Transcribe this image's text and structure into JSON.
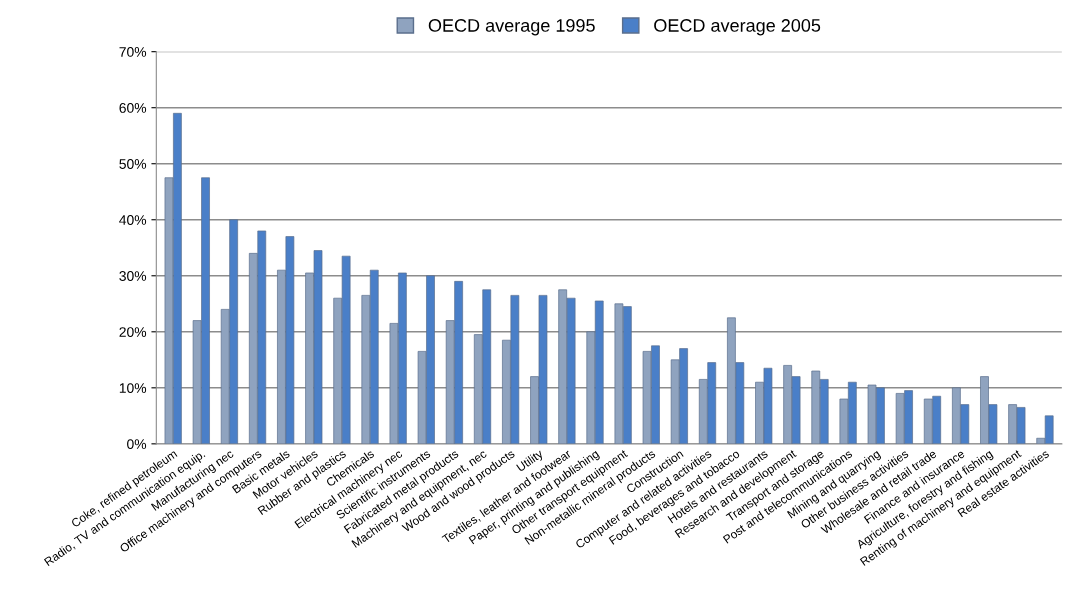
{
  "chart_data": {
    "type": "bar",
    "categories": [
      "Coke, refined petroleum",
      "Radio, TV and communication equip.",
      "Manufacturing nec",
      "Office machinery and computers",
      "Basic metals",
      "Motor vehicles",
      "Rubber and plastics",
      "Chemicals",
      "Electrical machinery nec",
      "Scientific instruments",
      "Fabricated metal products",
      "Machinery and equipment, nec",
      "Wood and wood products",
      "Utility",
      "Textiles, leather and footwear",
      "Paper, printing and publishing",
      "Other transport equipment",
      "Non-metallic mineral products",
      "Construction",
      "Computer and related activities",
      "Food, beverages and tobacco",
      "Hotels and restaurants",
      "Research and development",
      "Transport and storage",
      "Post and telecommunications",
      "Mining and quarrying",
      "Other business activities",
      "Wholesale and retail trade",
      "Finance and insurance",
      "Agriculture, forestry and fishing",
      "Renting of machinery and equipment",
      "Real estate activities"
    ],
    "series": [
      {
        "name": "OECD average 1995",
        "color": "#8fa3bf",
        "values": [
          47.5,
          22,
          24,
          34,
          31,
          30.5,
          26,
          26.5,
          21.5,
          16.5,
          22,
          19.5,
          18.5,
          12,
          27.5,
          20,
          25,
          16.5,
          15,
          11.5,
          22.5,
          11,
          14,
          13,
          8,
          10.5,
          9,
          8,
          10,
          12,
          7,
          1
        ]
      },
      {
        "name": "OECD average 2005",
        "color": "#4a7fc8",
        "values": [
          59,
          47.5,
          40,
          38,
          37,
          34.5,
          33.5,
          31,
          30.5,
          30,
          29,
          27.5,
          26.5,
          26.5,
          26,
          25.5,
          24.5,
          17.5,
          17,
          14.5,
          14.5,
          13.5,
          12,
          11.5,
          11,
          10,
          9.5,
          8.5,
          7,
          7,
          6.5,
          5
        ]
      }
    ],
    "ylim": [
      0,
      70
    ],
    "yticks": [
      {
        "value": 0,
        "label": "0%"
      },
      {
        "value": 10,
        "label": "10%"
      },
      {
        "value": 20,
        "label": "20%"
      },
      {
        "value": 30,
        "label": "30%"
      },
      {
        "value": 40,
        "label": "40%"
      },
      {
        "value": 50,
        "label": "50%"
      },
      {
        "value": 60,
        "label": "60%"
      },
      {
        "value": 70,
        "label": "70%"
      }
    ],
    "grid": "y",
    "legend": "top"
  }
}
